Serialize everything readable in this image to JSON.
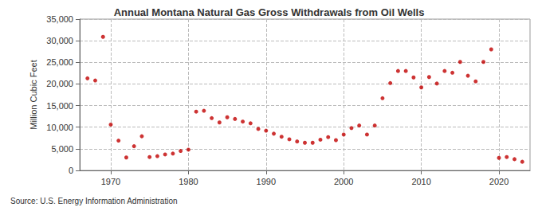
{
  "chart_data": {
    "type": "scatter",
    "title": "Annual Montana Natural Gas Gross Withdrawals from Oil Wells",
    "y_label": "Million Cubic Feet",
    "source": "Source: U.S. Energy Information Administration",
    "x": [
      1967,
      1968,
      1969,
      1970,
      1971,
      1972,
      1973,
      1974,
      1975,
      1976,
      1977,
      1978,
      1979,
      1980,
      1981,
      1982,
      1983,
      1984,
      1985,
      1986,
      1987,
      1988,
      1989,
      1990,
      1991,
      1992,
      1993,
      1994,
      1995,
      1996,
      1997,
      1998,
      1999,
      2000,
      2001,
      2002,
      2003,
      2004,
      2005,
      2006,
      2007,
      2008,
      2009,
      2010,
      2011,
      2012,
      2013,
      2014,
      2015,
      2016,
      2017,
      2018,
      2019,
      2020,
      2021,
      2022,
      2023
    ],
    "values": [
      21300,
      20800,
      30900,
      10600,
      6900,
      3000,
      5600,
      7900,
      3100,
      3300,
      3700,
      3900,
      4500,
      4800,
      13600,
      13800,
      12100,
      11100,
      12300,
      11900,
      11300,
      10900,
      9600,
      9200,
      8500,
      7800,
      7200,
      6700,
      6400,
      6400,
      7100,
      7700,
      7000,
      8300,
      9800,
      10400,
      8300,
      10400,
      16700,
      20200,
      23000,
      23000,
      21500,
      19200,
      21600,
      20100,
      23000,
      22600,
      25100,
      21900,
      20600,
      25100,
      28000,
      2900,
      3100,
      2600,
      2000
    ],
    "color": "#c00000",
    "marker": "circle",
    "xlim": [
      1966,
      2024
    ],
    "xticks": [
      1970,
      1980,
      1990,
      2000,
      2010,
      2020
    ],
    "ylim": [
      0,
      35000
    ],
    "yticks": [
      0,
      {
        "value": 5000,
        "label": "5,000"
      },
      {
        "value": 10000,
        "label": "10,000"
      },
      {
        "value": 15000,
        "label": "15,000"
      },
      {
        "value": 20000,
        "label": "20,000"
      },
      {
        "value": 25000,
        "label": "25,000"
      },
      {
        "value": 30000,
        "label": "30,000"
      },
      {
        "value": 35000,
        "label": "35,000"
      }
    ],
    "grid": true
  }
}
